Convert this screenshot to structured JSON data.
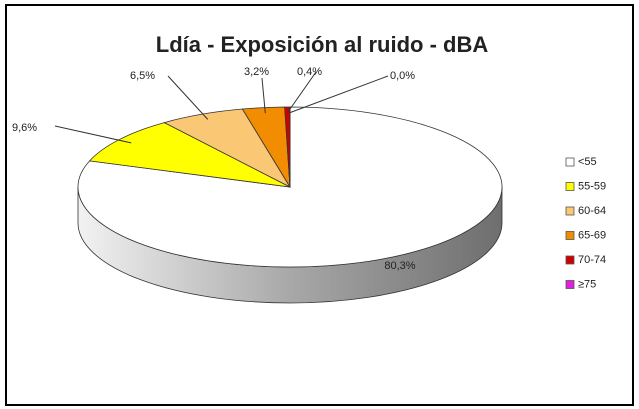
{
  "chart_data": {
    "type": "pie",
    "title": "Ldía - Exposición  al ruido - dBA",
    "categories": [
      "<55",
      "55-59",
      "60-64",
      "65-69",
      "70-74",
      "≥75"
    ],
    "values": [
      80.3,
      9.6,
      6.5,
      3.2,
      0.4,
      0.0
    ],
    "value_labels": [
      "80,3%",
      "9,6%",
      "6,5%",
      "3,2%",
      "0,4%",
      "0,0%"
    ],
    "colors": [
      "#ffffff",
      "#ffff00",
      "#fac775",
      "#f28c00",
      "#d00000",
      "#e020e0"
    ],
    "legend": "right"
  }
}
